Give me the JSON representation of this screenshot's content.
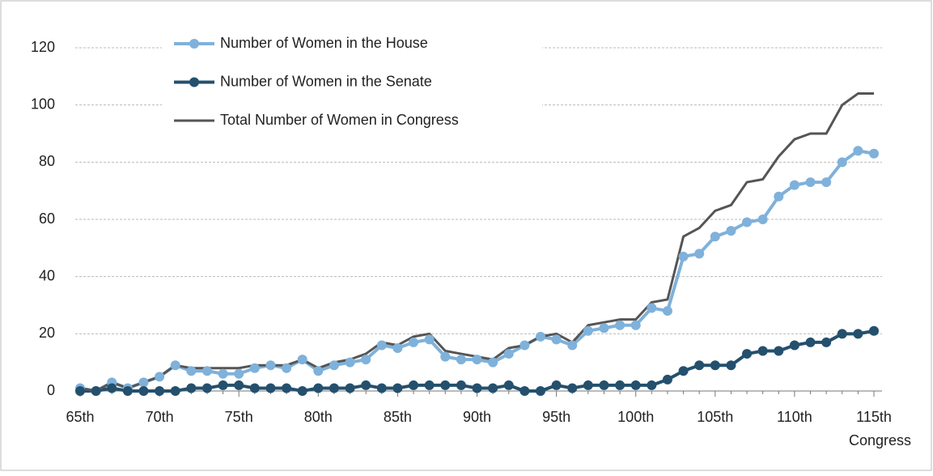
{
  "chart_data": {
    "type": "line",
    "x_label": "Congress",
    "categories": [
      "65th",
      null,
      null,
      null,
      null,
      "70th",
      null,
      null,
      null,
      null,
      "75th",
      null,
      null,
      null,
      null,
      "80th",
      null,
      null,
      null,
      null,
      "85th",
      null,
      null,
      null,
      null,
      "90th",
      null,
      null,
      null,
      null,
      "95th",
      null,
      null,
      null,
      null,
      "100th",
      null,
      null,
      null,
      null,
      "105th",
      null,
      null,
      null,
      null,
      "110th",
      null,
      null,
      null,
      null,
      "115th"
    ],
    "series": [
      {
        "name": "Number of Women in the House",
        "color": "#7fb1da",
        "marker": true,
        "width": 4,
        "values": [
          1,
          0,
          3,
          1,
          3,
          5,
          9,
          7,
          7,
          6,
          6,
          8,
          9,
          8,
          11,
          7,
          9,
          10,
          11,
          16,
          15,
          17,
          18,
          12,
          11,
          11,
          10,
          13,
          16,
          19,
          18,
          16,
          21,
          22,
          23,
          23,
          29,
          28,
          47,
          48,
          54,
          56,
          59,
          60,
          68,
          72,
          73,
          73,
          80,
          84,
          83
        ]
      },
      {
        "name": "Number of Women in the Senate",
        "color": "#24506e",
        "marker": true,
        "width": 4,
        "values": [
          0,
          0,
          1,
          0,
          0,
          0,
          0,
          1,
          1,
          2,
          2,
          1,
          1,
          1,
          0,
          1,
          1,
          1,
          2,
          1,
          1,
          2,
          2,
          2,
          2,
          1,
          1,
          2,
          0,
          0,
          2,
          1,
          2,
          2,
          2,
          2,
          2,
          4,
          7,
          9,
          9,
          9,
          13,
          14,
          14,
          16,
          17,
          17,
          20,
          20,
          21
        ]
      },
      {
        "name": "Total Number of Women in Congress",
        "color": "#555555",
        "marker": false,
        "width": 3,
        "values": [
          1,
          0,
          3,
          1,
          3,
          5,
          9,
          8,
          8,
          8,
          8,
          9,
          9,
          9,
          11,
          8,
          10,
          11,
          13,
          17,
          16,
          19,
          20,
          14,
          13,
          12,
          11,
          15,
          16,
          19,
          20,
          17,
          23,
          24,
          25,
          25,
          31,
          32,
          54,
          57,
          63,
          65,
          73,
          74,
          82,
          88,
          90,
          90,
          100,
          104,
          104
        ]
      }
    ],
    "ylim": [
      0,
      120
    ],
    "yticks": [
      0,
      20,
      40,
      60,
      80,
      100,
      120
    ],
    "grid": true,
    "legend": "top-left"
  }
}
